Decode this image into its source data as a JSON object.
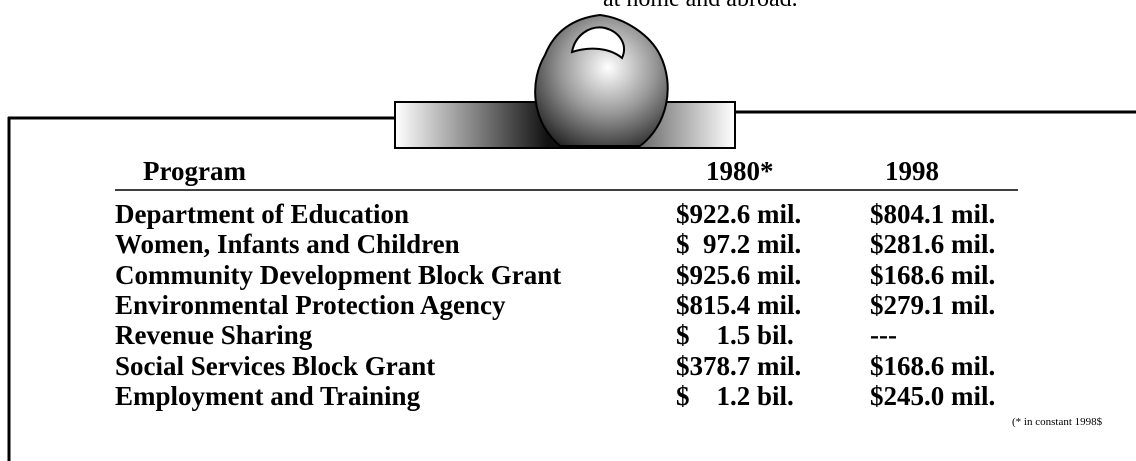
{
  "header": {
    "text": "at home and abroad."
  },
  "table": {
    "columns": [
      "Program",
      "1980*",
      "1998"
    ],
    "rows": [
      [
        "Department of Education",
        "$922.6 mil.",
        "$804.1 mil."
      ],
      [
        "Women, Infants and Children",
        "$  97.2 mil.",
        "$281.6 mil."
      ],
      [
        "Community Development Block Grant",
        "$925.6 mil.",
        "$168.6 mil."
      ],
      [
        "Environmental Protection Agency",
        "$815.4 mil.",
        "$279.1 mil."
      ],
      [
        "Revenue Sharing",
        "$    1.5 bil.",
        "---"
      ],
      [
        "Social Services Block Grant",
        "$378.7 mil.",
        "$168.6 mil."
      ],
      [
        "Employment and Training",
        "$    1.2 bil.",
        "$245.0 mil."
      ]
    ],
    "footnote": "(* in constant 1998$"
  }
}
